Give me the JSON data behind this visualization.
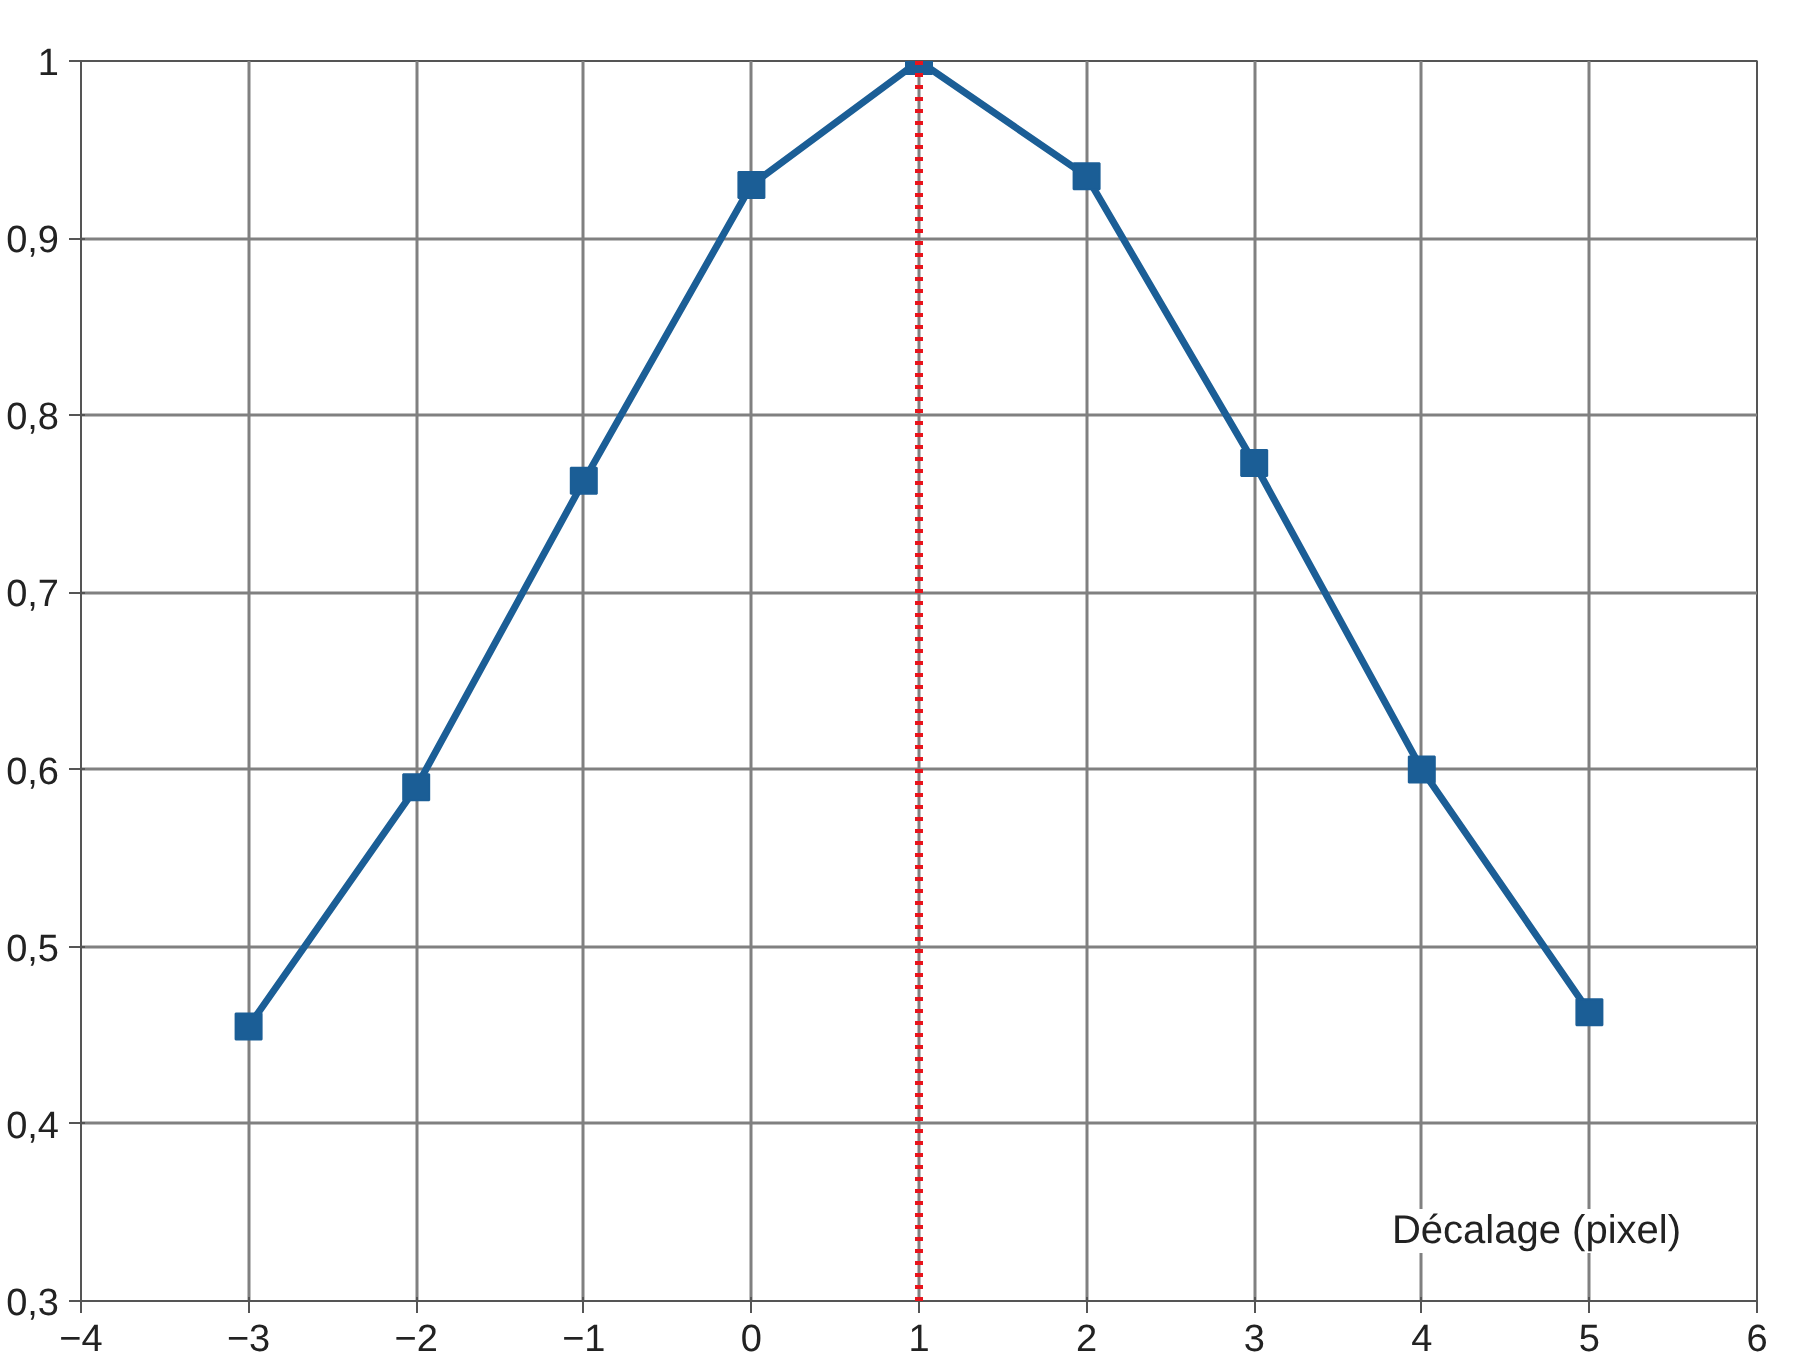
{
  "chart_data": {
    "type": "line",
    "xlabel": "Décalage (pixel)",
    "x": [
      -3,
      -2,
      -1,
      0,
      1,
      2,
      3,
      4,
      5
    ],
    "series": [
      {
        "color": "#1b5e96",
        "values": [
          0.455,
          0.59,
          0.763,
          0.93,
          1,
          0.935,
          0.773,
          0.6,
          0.463
        ]
      }
    ],
    "xlim": [
      -4,
      6
    ],
    "ylim": [
      0.3,
      1
    ],
    "xticks": [
      -4,
      -3,
      -2,
      -1,
      0,
      1,
      2,
      3,
      4,
      5,
      6
    ],
    "yticks": [
      {
        "value": 0.3,
        "label": "0,3"
      },
      {
        "value": 0.4,
        "label": "0,4"
      },
      {
        "value": 0.5,
        "label": "0,5"
      },
      {
        "value": 0.6,
        "label": "0,6"
      },
      {
        "value": 0.7,
        "label": "0,7"
      },
      {
        "value": 0.8,
        "label": "0,8"
      },
      {
        "value": 0.9,
        "label": "0,9"
      },
      {
        "value": 1,
        "label": "1"
      }
    ],
    "ref_lines": [
      {
        "axis": "x",
        "value": 1,
        "color": "#e8141c",
        "line_style": "dotted"
      }
    ],
    "grid": true,
    "marker": "square",
    "line_style": "solid"
  }
}
